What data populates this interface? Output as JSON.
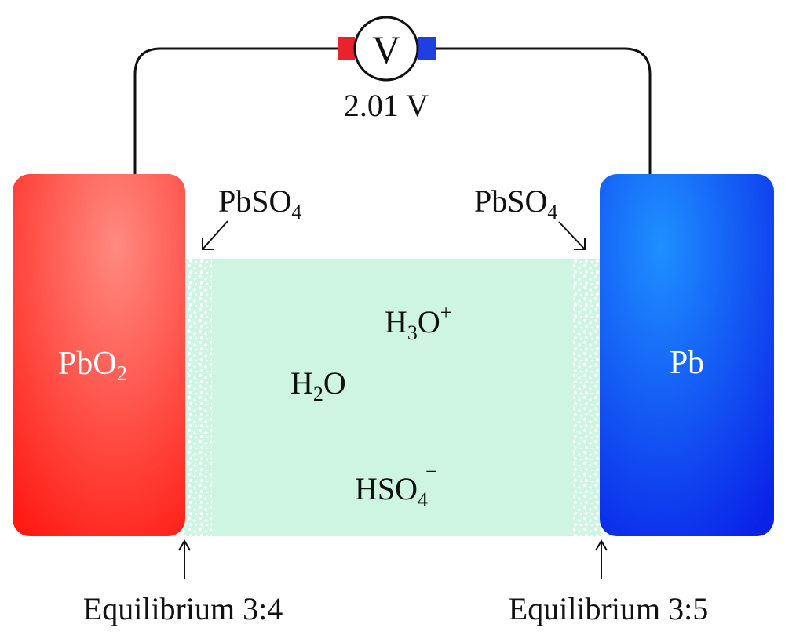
{
  "voltmeter": {
    "symbol": "V",
    "reading": "2.01 V",
    "left_terminal_color": "#e8232b",
    "right_terminal_color": "#1f3fe0"
  },
  "left_electrode": {
    "label_main": "PbO",
    "label_sub": "2",
    "color_light": "#ff8a80",
    "color_dark": "#ff1a12"
  },
  "right_electrode": {
    "label": "Pb",
    "color_light": "#1e90ff",
    "color_dark": "#0a22e8"
  },
  "electrolyte": {
    "color": "#cdf5e1",
    "species": {
      "hydronium": {
        "main": "H",
        "sub": "3",
        "tail": "O",
        "sup": "+"
      },
      "water": {
        "main": "H",
        "sub": "2",
        "tail": "O"
      },
      "bisulfate": {
        "main": "HSO",
        "sub": "4",
        "sup": "−"
      }
    }
  },
  "deposits": {
    "left_label": {
      "main": "PbSO",
      "sub": "4"
    },
    "right_label": {
      "main": "PbSO",
      "sub": "4"
    }
  },
  "equilibria": {
    "left": "Equilibrium 3:4",
    "right": "Equilibrium 3:5"
  }
}
